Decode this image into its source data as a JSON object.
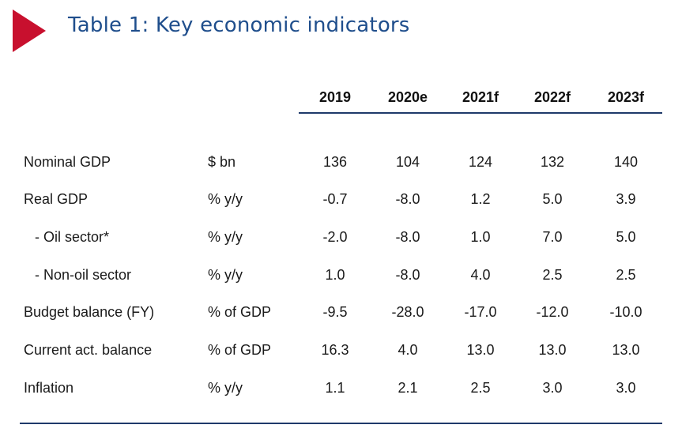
{
  "title": "Table 1: Key economic indicators",
  "colors": {
    "marker": "#c8102e",
    "title": "#1f4e8c",
    "rules": "#1f3a6a"
  },
  "columns": [
    "2019",
    "2020e",
    "2021f",
    "2022f",
    "2023f"
  ],
  "rows": [
    {
      "label": "Nominal GDP",
      "unit": "$ bn",
      "values": [
        "136",
        "104",
        "124",
        "132",
        "140"
      ]
    },
    {
      "label": "Real GDP",
      "unit": "% y/y",
      "values": [
        "-0.7",
        "-8.0",
        "1.2",
        "5.0",
        "3.9"
      ]
    },
    {
      "label": "  - Oil sector*",
      "unit": "% y/y",
      "values": [
        "-2.0",
        "-8.0",
        "1.0",
        "7.0",
        "5.0"
      ]
    },
    {
      "label": "  - Non-oil sector",
      "unit": "% y/y",
      "values": [
        "1.0",
        "-8.0",
        "4.0",
        "2.5",
        "2.5"
      ]
    },
    {
      "label": "Budget balance (FY)",
      "unit": "% of GDP",
      "values": [
        "-9.5",
        "-28.0",
        "-17.0",
        "-12.0",
        "-10.0"
      ]
    },
    {
      "label": "Current act. balance",
      "unit": "% of GDP",
      "values": [
        "16.3",
        "4.0",
        "13.0",
        "13.0",
        "13.0"
      ]
    },
    {
      "label": "Inflation",
      "unit": "% y/y",
      "values": [
        "1.1",
        "2.1",
        "2.5",
        "3.0",
        "3.0"
      ]
    }
  ]
}
